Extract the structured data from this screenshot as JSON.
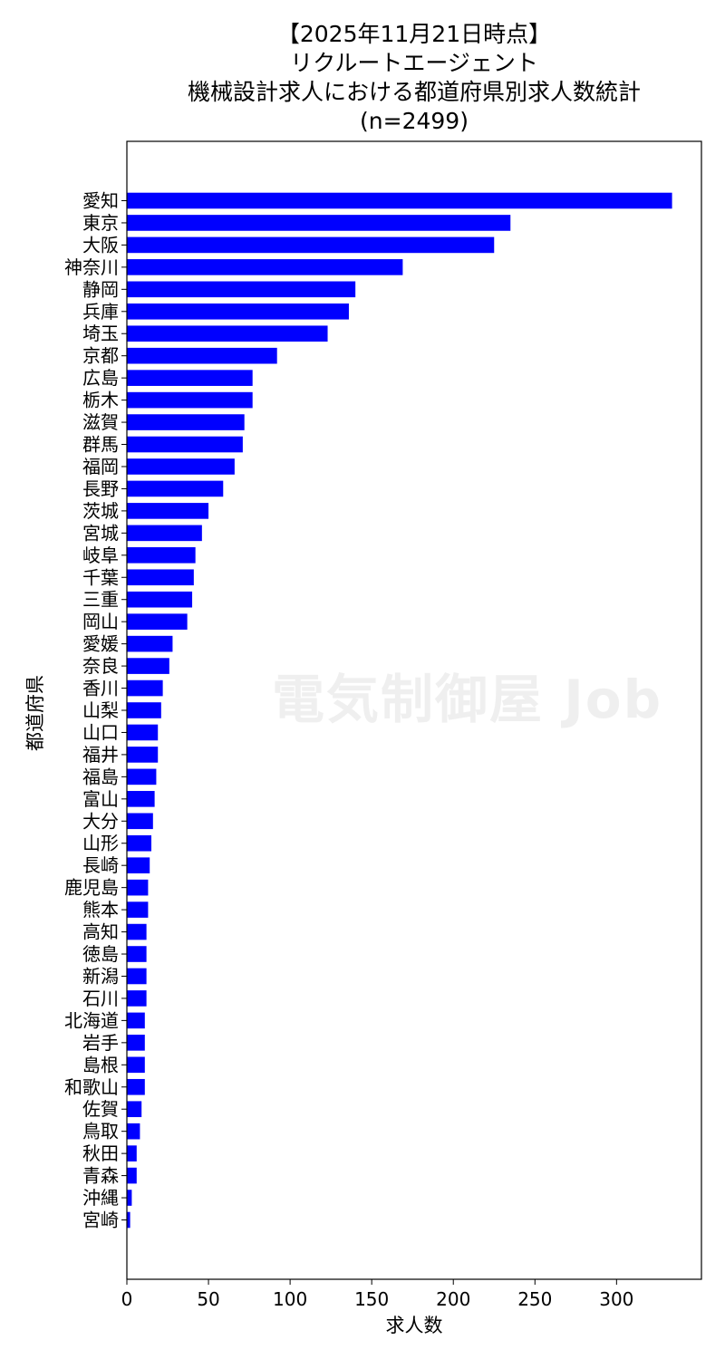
{
  "title_lines": [
    "【2025年11月21日時点】",
    "リクルートエージェント",
    "機械設計求人における都道府県別求人数統計",
    "(n=2499)"
  ],
  "watermark": "電気制御屋 Job",
  "chart_data": {
    "type": "bar",
    "orientation": "horizontal",
    "title": "【2025年11月21日時点】 リクルートエージェント 機械設計求人における都道府県別求人数統計 (n=2499)",
    "xlabel": "求人数",
    "ylabel": "都道府県",
    "xlim": [
      0,
      352
    ],
    "xticks": [
      0,
      50,
      100,
      150,
      200,
      250,
      300
    ],
    "bar_color": "#0000ff",
    "grid": false,
    "categories": [
      "愛知",
      "東京",
      "大阪",
      "神奈川",
      "静岡",
      "兵庫",
      "埼玉",
      "京都",
      "広島",
      "栃木",
      "滋賀",
      "群馬",
      "福岡",
      "長野",
      "茨城",
      "宮城",
      "岐阜",
      "千葉",
      "三重",
      "岡山",
      "愛媛",
      "奈良",
      "香川",
      "山梨",
      "山口",
      "福井",
      "福島",
      "富山",
      "大分",
      "山形",
      "長崎",
      "鹿児島",
      "熊本",
      "高知",
      "徳島",
      "新潟",
      "石川",
      "北海道",
      "岩手",
      "島根",
      "和歌山",
      "佐賀",
      "鳥取",
      "秋田",
      "青森",
      "沖縄",
      "宮崎"
    ],
    "values": [
      334,
      235,
      225,
      169,
      140,
      136,
      123,
      92,
      77,
      77,
      72,
      71,
      66,
      59,
      50,
      46,
      42,
      41,
      40,
      37,
      28,
      26,
      22,
      21,
      19,
      19,
      18,
      17,
      16,
      15,
      14,
      13,
      13,
      12,
      12,
      12,
      12,
      11,
      11,
      11,
      11,
      9,
      8,
      6,
      6,
      3,
      2
    ]
  }
}
